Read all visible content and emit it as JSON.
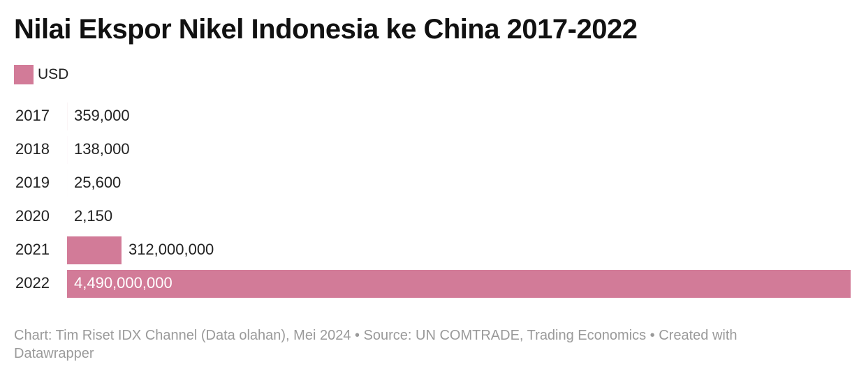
{
  "chart_data": {
    "type": "bar",
    "orientation": "horizontal",
    "title": "Nilai Ekspor Nikel Indonesia ke China 2017-2022",
    "categories": [
      "2017",
      "2018",
      "2019",
      "2020",
      "2021",
      "2022"
    ],
    "series": [
      {
        "name": "USD",
        "color": "#d27b98",
        "values": [
          359000,
          138000,
          25600,
          2150,
          312000000,
          4490000000
        ],
        "value_labels": [
          "359,000",
          "138,000",
          "25,600",
          "2,150",
          "312,000,000",
          "4,490,000,000"
        ]
      }
    ],
    "footer": "Chart: Tim Riset IDX Channel (Data olahan), Mei 2024 • Source: UN COMTRADE, Trading Economics • Created with Datawrapper"
  }
}
